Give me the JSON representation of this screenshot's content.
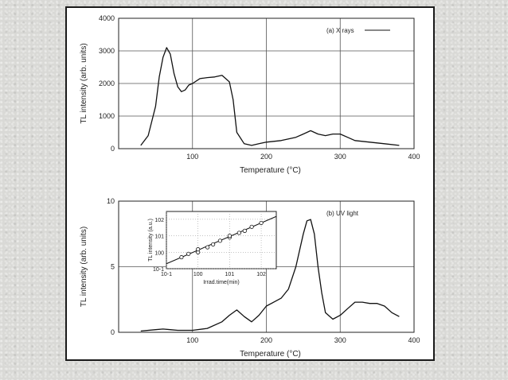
{
  "chart_data": [
    {
      "type": "line",
      "xlabel": "Temperature (°C)",
      "ylabel": "TL intensity (arb. units)",
      "xlim": [
        0,
        400
      ],
      "ylim": [
        0,
        4000
      ],
      "xticks": [
        100,
        200,
        300,
        400
      ],
      "yticks": [
        0,
        1000,
        2000,
        3000,
        4000
      ],
      "grid": true,
      "series": [
        {
          "name": "(a) X rays",
          "x": [
            30,
            40,
            50,
            55,
            60,
            65,
            70,
            75,
            80,
            85,
            90,
            95,
            100,
            110,
            120,
            130,
            140,
            145,
            150,
            155,
            160,
            170,
            180,
            190,
            200,
            220,
            240,
            250,
            260,
            270,
            280,
            290,
            300,
            310,
            320,
            340,
            360,
            380
          ],
          "y": [
            100,
            400,
            1300,
            2200,
            2800,
            3100,
            2900,
            2300,
            1900,
            1750,
            1800,
            1950,
            2000,
            2150,
            2180,
            2200,
            2250,
            2150,
            2050,
            1500,
            500,
            150,
            100,
            150,
            200,
            250,
            350,
            450,
            550,
            450,
            400,
            450,
            450,
            350,
            250,
            200,
            150,
            100
          ]
        }
      ]
    },
    {
      "type": "line",
      "xlabel": "Temperature (°C)",
      "ylabel": "TL intensity (arb. units)",
      "xlim": [
        0,
        400
      ],
      "ylim": [
        0,
        10
      ],
      "xticks": [
        100,
        200,
        300,
        400
      ],
      "yticks": [
        0,
        5,
        10
      ],
      "grid": true,
      "series": [
        {
          "name": "(b) UV light",
          "x": [
            30,
            50,
            60,
            70,
            80,
            100,
            120,
            140,
            150,
            160,
            170,
            180,
            190,
            200,
            210,
            220,
            230,
            240,
            250,
            255,
            260,
            265,
            270,
            275,
            280,
            290,
            300,
            310,
            320,
            330,
            340,
            350,
            360,
            370,
            380
          ],
          "y": [
            0.1,
            0.2,
            0.25,
            0.2,
            0.15,
            0.15,
            0.3,
            0.8,
            1.3,
            1.7,
            1.2,
            0.8,
            1.3,
            2.0,
            2.3,
            2.6,
            3.3,
            5.0,
            7.5,
            8.5,
            8.6,
            7.5,
            5.0,
            3.0,
            1.5,
            1.0,
            1.3,
            1.8,
            2.3,
            2.3,
            2.2,
            2.2,
            2.0,
            1.5,
            1.2
          ]
        }
      ],
      "inset": {
        "type": "scatter",
        "xlabel": "Irrad.time(min)",
        "ylabel": "TL intensity (a.u.)",
        "xscale": "log",
        "yscale": "log",
        "xlim": [
          0.1,
          300
        ],
        "ylim": [
          0.1,
          300
        ],
        "xticks": [
          "10^-1",
          "10^0",
          "10^1",
          "10^2"
        ],
        "yticks": [
          "10^-1",
          "10^0",
          "10^1",
          "10^2"
        ],
        "x": [
          0.3,
          0.5,
          1,
          1,
          2,
          3,
          5,
          10,
          10,
          20,
          30,
          50,
          100
        ],
        "y": [
          0.5,
          0.8,
          1,
          1.5,
          2,
          3,
          5,
          8,
          10,
          15,
          20,
          35,
          60
        ],
        "fit_line": {
          "x": [
            0.1,
            300
          ],
          "y": [
            0.2,
            150
          ]
        }
      }
    }
  ]
}
